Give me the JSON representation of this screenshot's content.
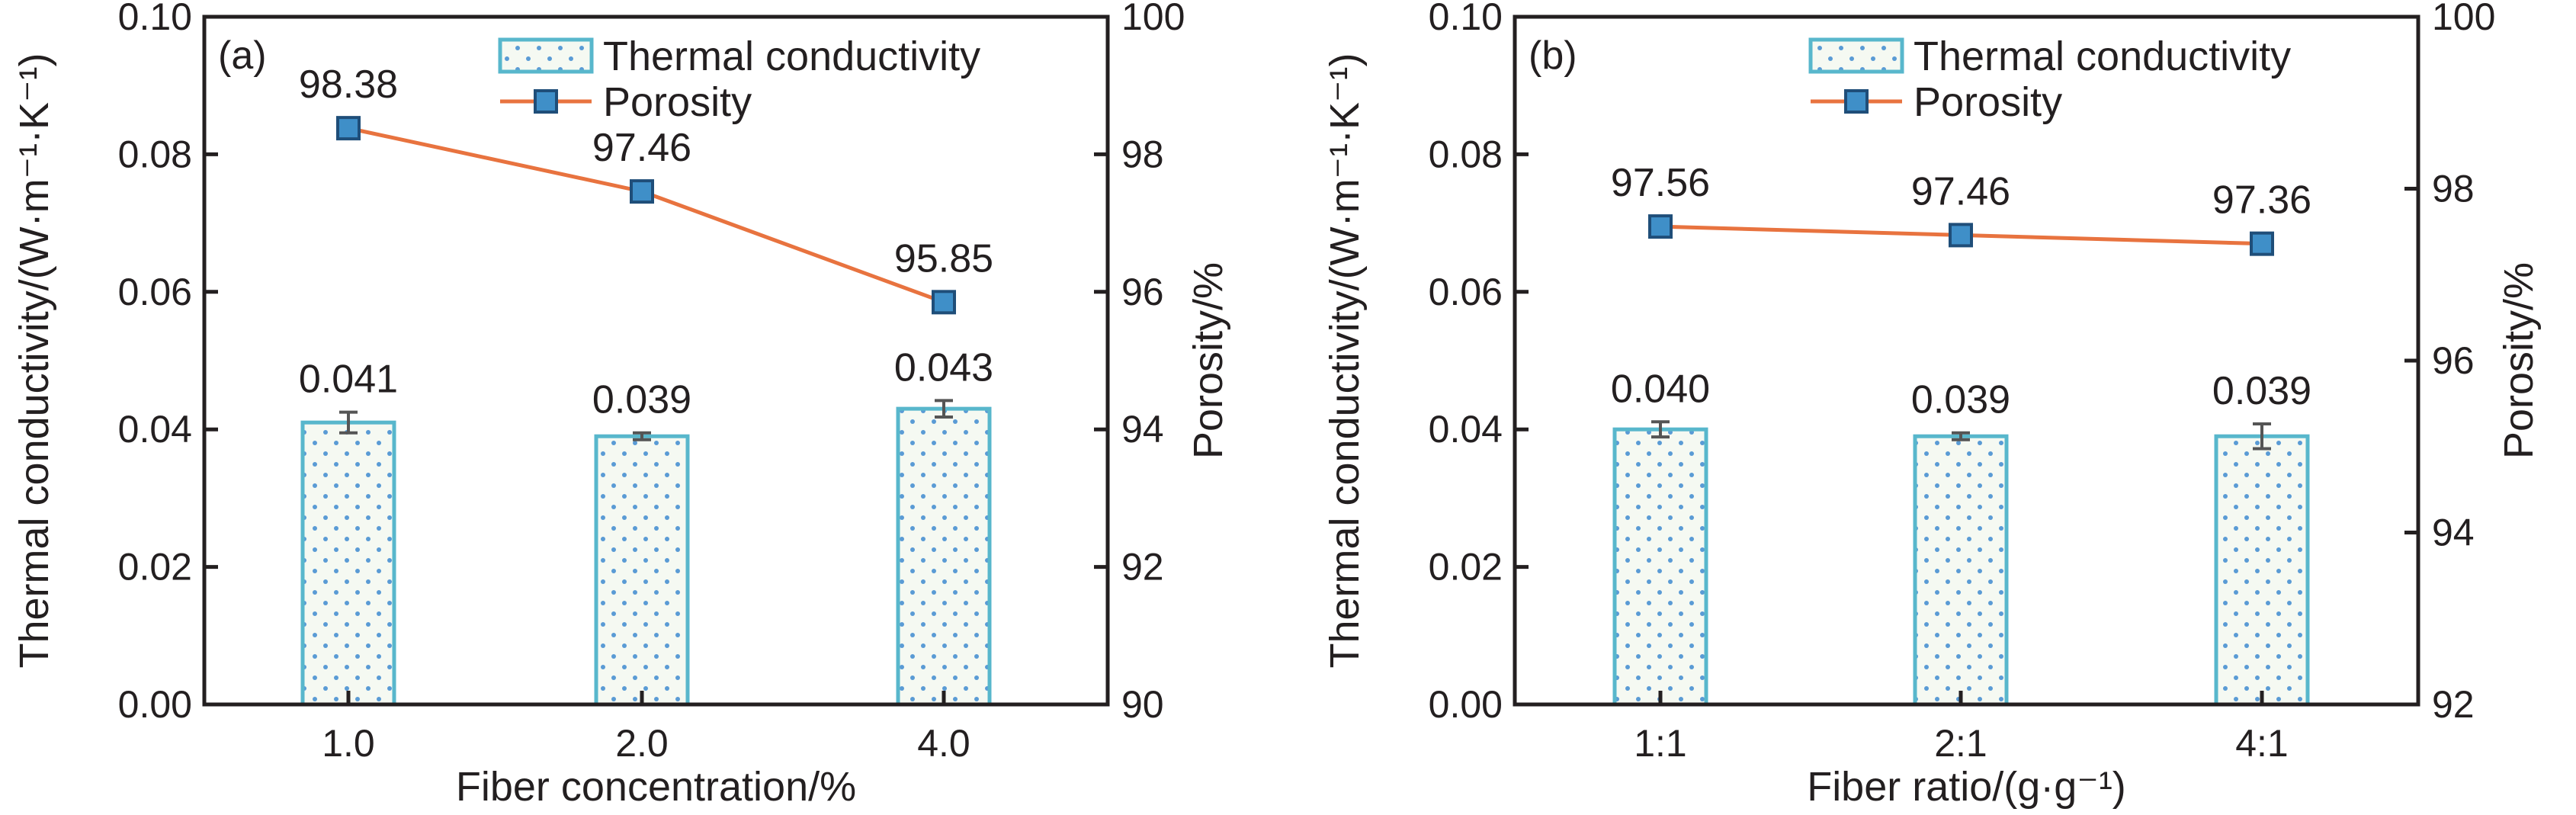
{
  "colors": {
    "bar_stroke": "#58b7cc",
    "bar_fill": "#f5f9f2",
    "bar_dot": "#5a9bd5",
    "line": "#e8733f",
    "marker_fill": "#3f8fc8",
    "marker_stroke": "#1f4e79",
    "error_bar": "#555555",
    "axis": "#231f20"
  },
  "chart_data": [
    {
      "panel_label": "(a)",
      "type": "bar+line",
      "xlabel": "Fiber concentration/%",
      "ylabel_left": "Thermal conductivity/(W·m⁻¹·K⁻¹)",
      "ylabel_right": "Porosity/%",
      "categories": [
        "1.0",
        "2.0",
        "4.0"
      ],
      "ylim_left": [
        0,
        0.1
      ],
      "yticks_left": [
        "0.00",
        "0.02",
        "0.04",
        "0.06",
        "0.08",
        "0.10"
      ],
      "ylim_right": [
        90,
        100
      ],
      "yticks_right": [
        "90",
        "92",
        "94",
        "96",
        "98",
        "100"
      ],
      "series": [
        {
          "name": "Thermal conductivity",
          "kind": "bar",
          "axis": "left",
          "values": [
            0.041,
            0.039,
            0.043
          ],
          "errors": [
            0.0015,
            0.0005,
            0.0012
          ],
          "labels": [
            "0.041",
            "0.039",
            "0.043"
          ]
        },
        {
          "name": "Porosity",
          "kind": "line",
          "axis": "right",
          "values": [
            98.38,
            97.46,
            95.85
          ],
          "labels": [
            "98.38",
            "97.46",
            "95.85"
          ]
        }
      ],
      "legend_position": "top-right",
      "grid": false
    },
    {
      "panel_label": "(b)",
      "type": "bar+line",
      "xlabel": "Fiber ratio/(g·g⁻¹)",
      "ylabel_left": "Thermal conductivity/(W·m⁻¹·K⁻¹)",
      "ylabel_right": "Porosity/%",
      "categories": [
        "1:1",
        "2:1",
        "4:1"
      ],
      "ylim_left": [
        0,
        0.1
      ],
      "yticks_left": [
        "0.00",
        "0.02",
        "0.04",
        "0.06",
        "0.08",
        "0.10"
      ],
      "ylim_right": [
        92,
        100
      ],
      "yticks_right": [
        "92",
        "94",
        "96",
        "98",
        "100"
      ],
      "series": [
        {
          "name": "Thermal conductivity",
          "kind": "bar",
          "axis": "left",
          "values": [
            0.04,
            0.039,
            0.039
          ],
          "errors": [
            0.0011,
            0.0005,
            0.0018
          ],
          "labels": [
            "0.040",
            "0.039",
            "0.039"
          ]
        },
        {
          "name": "Porosity",
          "kind": "line",
          "axis": "right",
          "values": [
            97.56,
            97.46,
            97.36
          ],
          "labels": [
            "97.56",
            "97.46",
            "97.36"
          ]
        }
      ],
      "legend_position": "top-right",
      "grid": false
    }
  ]
}
